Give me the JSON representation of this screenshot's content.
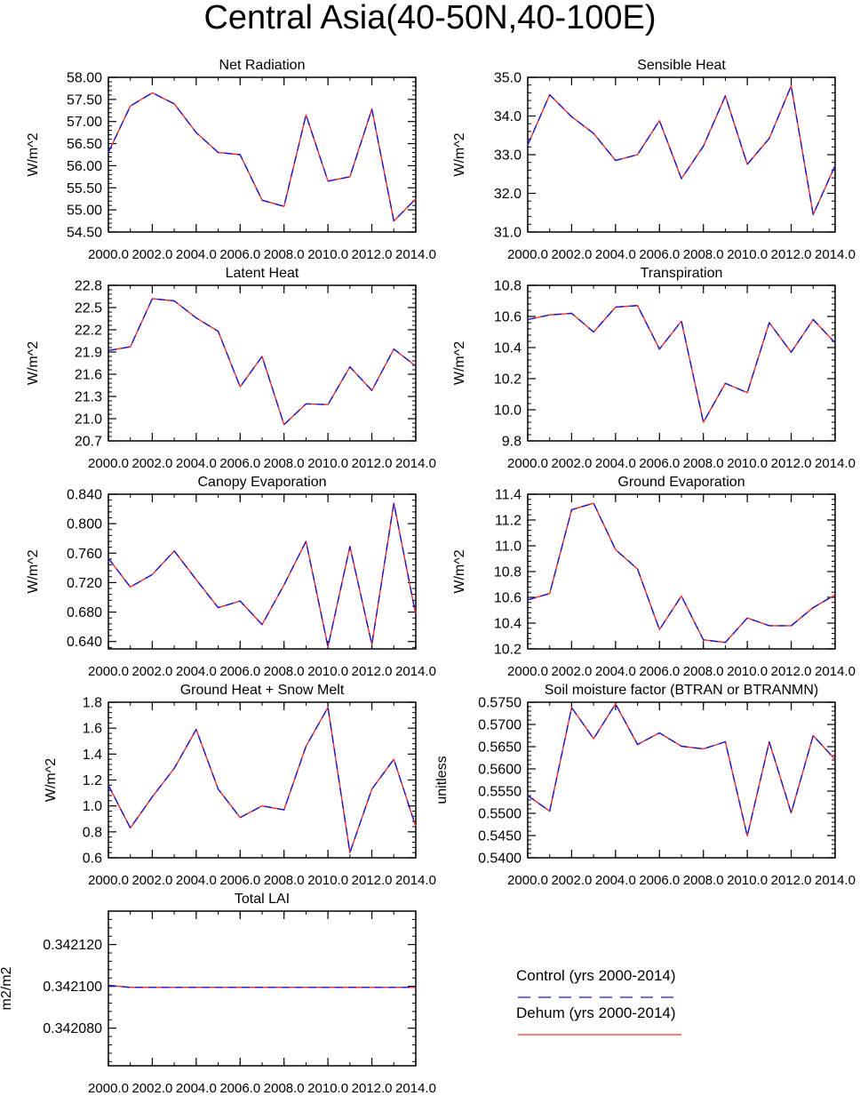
{
  "page_title": "Central Asia(40-50N,40-100E)",
  "colors": {
    "control": "#1a1acc",
    "dehum": "#ff2a2a",
    "axis": "#000000"
  },
  "legend": {
    "control_label": "Control (yrs 2000-2014)",
    "dehum_label": "Dehum (yrs 2000-2014)"
  },
  "chart_data": [
    {
      "type": "line",
      "title": "Net Radiation",
      "xlabel": "",
      "ylabel": "W/m^2",
      "x": [
        2000,
        2001,
        2002,
        2003,
        2004,
        2005,
        2006,
        2007,
        2008,
        2009,
        2010,
        2011,
        2012,
        2013,
        2014
      ],
      "xlim": [
        2000,
        2014
      ],
      "xticks": [
        "2000.0",
        "2002.0",
        "2004.0",
        "2006.0",
        "2008.0",
        "2010.0",
        "2012.0",
        "2014.0"
      ],
      "ylim": [
        54.5,
        58.0
      ],
      "yticks": [
        "54.50",
        "55.00",
        "55.50",
        "56.00",
        "56.50",
        "57.00",
        "57.50",
        "58.00"
      ],
      "series": [
        {
          "name": "Control (yrs 2000-2014)",
          "values": [
            56.3,
            57.35,
            57.65,
            57.4,
            56.75,
            56.3,
            56.25,
            55.22,
            55.08,
            57.15,
            55.65,
            55.75,
            57.28,
            54.75,
            55.25
          ]
        },
        {
          "name": "Dehum (yrs 2000-2014)",
          "values": [
            56.3,
            57.35,
            57.65,
            57.4,
            56.75,
            56.3,
            56.25,
            55.22,
            55.08,
            57.15,
            55.65,
            55.75,
            57.28,
            54.75,
            55.25
          ]
        }
      ]
    },
    {
      "type": "line",
      "title": "Sensible Heat",
      "xlabel": "",
      "ylabel": "W/m^2",
      "x": [
        2000,
        2001,
        2002,
        2003,
        2004,
        2005,
        2006,
        2007,
        2008,
        2009,
        2010,
        2011,
        2012,
        2013,
        2014
      ],
      "xlim": [
        2000,
        2014
      ],
      "xticks": [
        "2000.0",
        "2002.0",
        "2004.0",
        "2006.0",
        "2008.0",
        "2010.0",
        "2012.0",
        "2014.0"
      ],
      "ylim": [
        31.0,
        35.0
      ],
      "yticks": [
        "31.0",
        "32.0",
        "33.0",
        "34.0",
        "35.0"
      ],
      "series": [
        {
          "name": "Control (yrs 2000-2014)",
          "values": [
            33.25,
            34.55,
            33.98,
            33.55,
            32.85,
            33.0,
            33.88,
            32.38,
            33.22,
            34.52,
            32.75,
            33.42,
            34.78,
            31.45,
            32.72
          ]
        },
        {
          "name": "Dehum (yrs 2000-2014)",
          "values": [
            33.25,
            34.55,
            33.98,
            33.55,
            32.85,
            33.0,
            33.88,
            32.38,
            33.22,
            34.52,
            32.75,
            33.42,
            34.78,
            31.45,
            32.72
          ]
        }
      ]
    },
    {
      "type": "line",
      "title": "Latent Heat",
      "xlabel": "",
      "ylabel": "W/m^2",
      "x": [
        2000,
        2001,
        2002,
        2003,
        2004,
        2005,
        2006,
        2007,
        2008,
        2009,
        2010,
        2011,
        2012,
        2013,
        2014
      ],
      "xlim": [
        2000,
        2014
      ],
      "xticks": [
        "2000.0",
        "2002.0",
        "2004.0",
        "2006.0",
        "2008.0",
        "2010.0",
        "2012.0",
        "2014.0"
      ],
      "ylim": [
        20.7,
        22.8
      ],
      "yticks": [
        "20.7",
        "21.0",
        "21.3",
        "21.6",
        "21.9",
        "22.2",
        "22.5",
        "22.8"
      ],
      "series": [
        {
          "name": "Control (yrs 2000-2014)",
          "values": [
            21.92,
            21.97,
            22.62,
            22.59,
            22.36,
            22.18,
            21.43,
            21.84,
            20.92,
            21.2,
            21.19,
            21.7,
            21.38,
            21.94,
            21.71
          ]
        },
        {
          "name": "Dehum (yrs 2000-2014)",
          "values": [
            21.92,
            21.97,
            22.62,
            22.59,
            22.36,
            22.18,
            21.43,
            21.84,
            20.92,
            21.2,
            21.19,
            21.7,
            21.38,
            21.94,
            21.71
          ]
        }
      ]
    },
    {
      "type": "line",
      "title": "Transpiration",
      "xlabel": "",
      "ylabel": "W/m^2",
      "x": [
        2000,
        2001,
        2002,
        2003,
        2004,
        2005,
        2006,
        2007,
        2008,
        2009,
        2010,
        2011,
        2012,
        2013,
        2014
      ],
      "xlim": [
        2000,
        2014
      ],
      "xticks": [
        "2000.0",
        "2002.0",
        "2004.0",
        "2006.0",
        "2008.0",
        "2010.0",
        "2012.0",
        "2014.0"
      ],
      "ylim": [
        9.8,
        10.8
      ],
      "yticks": [
        "9.8",
        "10.0",
        "10.2",
        "10.4",
        "10.6",
        "10.8"
      ],
      "series": [
        {
          "name": "Control (yrs 2000-2014)",
          "values": [
            10.58,
            10.61,
            10.62,
            10.5,
            10.66,
            10.67,
            10.39,
            10.57,
            9.92,
            10.17,
            10.11,
            10.56,
            10.37,
            10.58,
            10.43
          ]
        },
        {
          "name": "Dehum (yrs 2000-2014)",
          "values": [
            10.58,
            10.61,
            10.62,
            10.5,
            10.66,
            10.67,
            10.39,
            10.57,
            9.92,
            10.17,
            10.11,
            10.56,
            10.37,
            10.58,
            10.43
          ]
        }
      ]
    },
    {
      "type": "line",
      "title": "Canopy Evaporation",
      "xlabel": "",
      "ylabel": "W/m^2",
      "x": [
        2000,
        2001,
        2002,
        2003,
        2004,
        2005,
        2006,
        2007,
        2008,
        2009,
        2010,
        2011,
        2012,
        2013,
        2014
      ],
      "xlim": [
        2000,
        2014
      ],
      "xticks": [
        "2000.0",
        "2002.0",
        "2004.0",
        "2006.0",
        "2008.0",
        "2010.0",
        "2012.0",
        "2014.0"
      ],
      "ylim": [
        0.63,
        0.84
      ],
      "yticks": [
        "0.640",
        "0.680",
        "0.720",
        "0.760",
        "0.800",
        "0.840"
      ],
      "series": [
        {
          "name": "Control (yrs 2000-2014)",
          "values": [
            0.753,
            0.714,
            0.731,
            0.763,
            0.724,
            0.686,
            0.695,
            0.663,
            0.717,
            0.776,
            0.633,
            0.769,
            0.636,
            0.828,
            0.676
          ]
        },
        {
          "name": "Dehum (yrs 2000-2014)",
          "values": [
            0.753,
            0.714,
            0.731,
            0.763,
            0.724,
            0.686,
            0.695,
            0.663,
            0.717,
            0.776,
            0.633,
            0.769,
            0.636,
            0.828,
            0.676
          ]
        }
      ]
    },
    {
      "type": "line",
      "title": "Ground Evaporation",
      "xlabel": "",
      "ylabel": "W/m^2",
      "x": [
        2000,
        2001,
        2002,
        2003,
        2004,
        2005,
        2006,
        2007,
        2008,
        2009,
        2010,
        2011,
        2012,
        2013,
        2014
      ],
      "xlim": [
        2000,
        2014
      ],
      "xticks": [
        "2000.0",
        "2002.0",
        "2004.0",
        "2006.0",
        "2008.0",
        "2010.0",
        "2012.0",
        "2014.0"
      ],
      "ylim": [
        10.2,
        11.4
      ],
      "yticks": [
        "10.2",
        "10.4",
        "10.6",
        "10.8",
        "11.0",
        "11.2",
        "11.4"
      ],
      "series": [
        {
          "name": "Control (yrs 2000-2014)",
          "values": [
            10.58,
            10.63,
            11.28,
            11.33,
            10.97,
            10.82,
            10.35,
            10.61,
            10.27,
            10.25,
            10.44,
            10.38,
            10.38,
            10.52,
            10.62
          ]
        },
        {
          "name": "Dehum (yrs 2000-2014)",
          "values": [
            10.58,
            10.63,
            11.28,
            11.33,
            10.97,
            10.82,
            10.35,
            10.61,
            10.27,
            10.25,
            10.44,
            10.38,
            10.38,
            10.52,
            10.62
          ]
        }
      ]
    },
    {
      "type": "line",
      "title": "Ground Heat + Snow Melt",
      "xlabel": "",
      "ylabel": "W/m^2",
      "x": [
        2000,
        2001,
        2002,
        2003,
        2004,
        2005,
        2006,
        2007,
        2008,
        2009,
        2010,
        2011,
        2012,
        2013,
        2014
      ],
      "xlim": [
        2000,
        2014
      ],
      "xticks": [
        "2000.0",
        "2002.0",
        "2004.0",
        "2006.0",
        "2008.0",
        "2010.0",
        "2012.0",
        "2014.0"
      ],
      "ylim": [
        0.6,
        1.8
      ],
      "yticks": [
        "0.6",
        "0.8",
        "1.0",
        "1.2",
        "1.4",
        "1.6",
        "1.8"
      ],
      "series": [
        {
          "name": "Control (yrs 2000-2014)",
          "values": [
            1.16,
            0.83,
            1.07,
            1.29,
            1.59,
            1.13,
            0.91,
            1.0,
            0.97,
            1.46,
            1.76,
            0.64,
            1.13,
            1.36,
            0.84
          ]
        },
        {
          "name": "Dehum (yrs 2000-2014)",
          "values": [
            1.16,
            0.83,
            1.07,
            1.29,
            1.59,
            1.13,
            0.91,
            1.0,
            0.97,
            1.46,
            1.76,
            0.64,
            1.13,
            1.36,
            0.84
          ]
        }
      ]
    },
    {
      "type": "line",
      "title": "Soil moisture factor (BTRAN or BTRANMN)",
      "xlabel": "",
      "ylabel": "unitless",
      "x": [
        2000,
        2001,
        2002,
        2003,
        2004,
        2005,
        2006,
        2007,
        2008,
        2009,
        2010,
        2011,
        2012,
        2013,
        2014
      ],
      "xlim": [
        2000,
        2014
      ],
      "xticks": [
        "2000.0",
        "2002.0",
        "2004.0",
        "2006.0",
        "2008.0",
        "2010.0",
        "2012.0",
        "2014.0"
      ],
      "ylim": [
        0.54,
        0.575
      ],
      "yticks": [
        "0.5400",
        "0.5450",
        "0.5500",
        "0.5550",
        "0.5600",
        "0.5650",
        "0.5700",
        "0.5750"
      ],
      "series": [
        {
          "name": "Control (yrs 2000-2014)",
          "values": [
            0.554,
            0.5505,
            0.5738,
            0.5668,
            0.5746,
            0.5655,
            0.5681,
            0.5651,
            0.5645,
            0.5661,
            0.5449,
            0.5661,
            0.5501,
            0.5675,
            0.5621
          ]
        },
        {
          "name": "Dehum (yrs 2000-2014)",
          "values": [
            0.554,
            0.5505,
            0.5738,
            0.5668,
            0.5746,
            0.5655,
            0.5681,
            0.5651,
            0.5645,
            0.5661,
            0.5449,
            0.5661,
            0.5501,
            0.5675,
            0.5621
          ]
        }
      ]
    },
    {
      "type": "line",
      "title": "Total LAI",
      "xlabel": "",
      "ylabel": "m2/m2",
      "x": [
        2000,
        2001,
        2002,
        2003,
        2004,
        2005,
        2006,
        2007,
        2008,
        2009,
        2010,
        2011,
        2012,
        2013,
        2014
      ],
      "xlim": [
        2000,
        2014
      ],
      "xticks": [
        "2000.0",
        "2002.0",
        "2004.0",
        "2006.0",
        "2008.0",
        "2010.0",
        "2012.0",
        "2014.0"
      ],
      "ylim": [
        0.342062,
        0.342136
      ],
      "yticks": [
        "0.342080",
        "0.342100",
        "0.342120"
      ],
      "series": [
        {
          "name": "Control (yrs 2000-2014)",
          "values": [
            0.3421005,
            0.3420995,
            0.3420995,
            0.3420995,
            0.3420995,
            0.3420995,
            0.3420995,
            0.3420995,
            0.3420995,
            0.3420995,
            0.3420995,
            0.3420995,
            0.3420995,
            0.3420995,
            0.3420995
          ]
        },
        {
          "name": "Dehum (yrs 2000-2014)",
          "values": [
            0.3421005,
            0.3420995,
            0.3420995,
            0.3420995,
            0.3420995,
            0.3420995,
            0.3420995,
            0.3420995,
            0.3420995,
            0.3420995,
            0.3420995,
            0.3420995,
            0.3420995,
            0.3420995,
            0.3420995
          ]
        }
      ]
    }
  ]
}
